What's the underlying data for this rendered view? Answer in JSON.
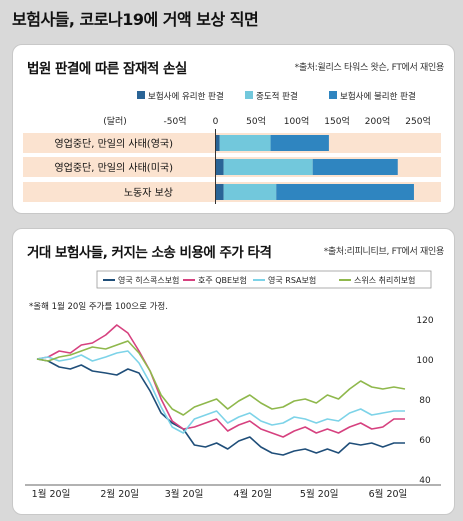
{
  "main_title": "보험사들, 코로나19에 거액 보상 직면",
  "colors": {
    "favorable": "#2a6496",
    "neutral": "#72c8dc",
    "unfavorable": "#2f85c0",
    "row_bg": "#fbe3d0",
    "hiscox": "#1f4e79",
    "qbe": "#d6417f",
    "rsa": "#7dd3e8",
    "swiss_re": "#8fb84c"
  },
  "chart_data": [
    {
      "type": "bar",
      "title": "법원 판결에 따른 잠재적 손실",
      "source": "*출처:윌리스 타워스 왓슨, FT에서 재인용",
      "unit_label": "(달러)",
      "xlim": [
        -50,
        250
      ],
      "ticks": [
        -50,
        0,
        50,
        100,
        150,
        200,
        250
      ],
      "tick_labels": [
        "-50억",
        "0",
        "50억",
        "100억",
        "150억",
        "200억",
        "250억"
      ],
      "categories": [
        "영업중단, 만일의 사태(영국)",
        "영업중단, 만일의 사태(미국)",
        "노동자 보상"
      ],
      "series": [
        {
          "name": "보험사에 유리한 판결",
          "values": [
            5,
            10,
            10
          ]
        },
        {
          "name": "중도적 판결",
          "values": [
            68,
            120,
            75
          ]
        },
        {
          "name": "보험사에 불리한 판결",
          "values": [
            140,
            225,
            245
          ]
        }
      ]
    },
    {
      "type": "line",
      "title": "거대 보험사들, 커지는 소송 비용에 주가 타격",
      "source": "*출처:리피니티브, FT에서 재인용",
      "note": "*올해 1월 20일 주가를 100으로 가정.",
      "ylim": [
        40,
        120
      ],
      "y_ticks": [
        40,
        60,
        80,
        100,
        120
      ],
      "x_tick_labels": [
        "1월 20일",
        "2월 20일",
        "3월 20일",
        "4월 20일",
        "5월 20일",
        "6월 20일"
      ],
      "x": [
        0,
        5,
        10,
        15,
        20,
        25,
        31,
        36,
        41,
        46,
        51,
        56,
        61,
        66,
        71,
        76,
        81,
        86,
        91,
        96,
        101,
        106,
        111,
        116,
        121,
        126,
        131,
        136,
        141,
        146,
        151,
        156,
        161,
        166
      ],
      "series": [
        {
          "name": "영국 히스콕스보험",
          "values": [
            100,
            99,
            96,
            95,
            97,
            94,
            93,
            92,
            95,
            93,
            84,
            73,
            68,
            65,
            57,
            56,
            58,
            55,
            59,
            61,
            56,
            53,
            52,
            54,
            55,
            53,
            55,
            53,
            58,
            57,
            58,
            56,
            58,
            58
          ]
        },
        {
          "name": "호주 QBE보험",
          "values": [
            100,
            101,
            104,
            103,
            107,
            108,
            112,
            117,
            113,
            104,
            94,
            80,
            69,
            65,
            66,
            68,
            70,
            64,
            67,
            69,
            65,
            63,
            61,
            64,
            66,
            63,
            65,
            63,
            66,
            68,
            65,
            66,
            70,
            70
          ]
        },
        {
          "name": "영국 RSA보험",
          "values": [
            100,
            101,
            99,
            100,
            102,
            99,
            101,
            103,
            104,
            98,
            88,
            76,
            66,
            63,
            70,
            72,
            74,
            68,
            71,
            73,
            69,
            67,
            68,
            71,
            70,
            68,
            70,
            69,
            73,
            75,
            72,
            73,
            74,
            74
          ]
        },
        {
          "name": "스위스 취리히보험",
          "values": [
            100,
            99,
            101,
            102,
            104,
            106,
            105,
            107,
            109,
            103,
            94,
            82,
            75,
            72,
            76,
            78,
            80,
            75,
            79,
            82,
            78,
            75,
            76,
            79,
            80,
            78,
            82,
            80,
            85,
            89,
            86,
            85,
            86,
            85
          ]
        }
      ]
    }
  ]
}
